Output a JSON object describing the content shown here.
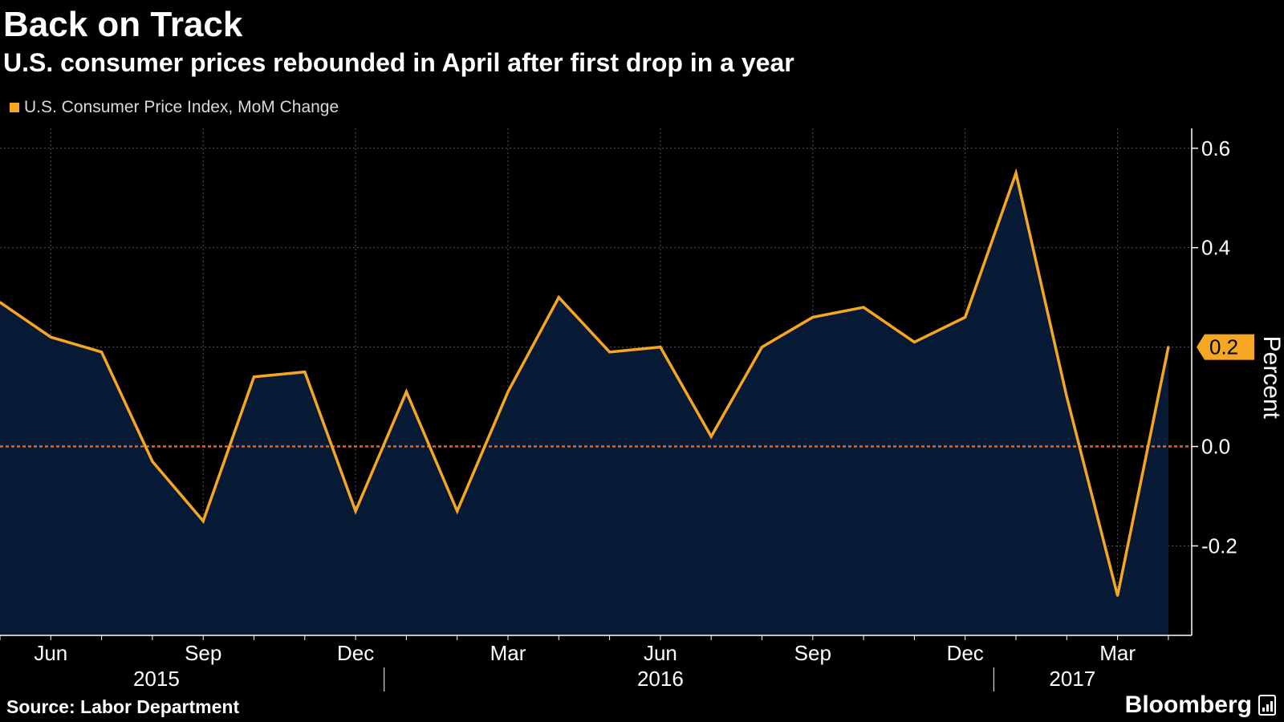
{
  "title": "Back on Track",
  "subtitle": "U.S. consumer prices rebounded in April after first drop in a year",
  "source": "Source: Labor Department",
  "brand": "Bloomberg",
  "colors": {
    "line": "#f5a623",
    "area": "#061a36",
    "zero_line": "#e8651a",
    "grid": "#555555"
  },
  "chart_data": {
    "type": "area",
    "x": [
      "2015-05",
      "2015-06",
      "2015-07",
      "2015-08",
      "2015-09",
      "2015-10",
      "2015-11",
      "2015-12",
      "2016-01",
      "2016-02",
      "2016-03",
      "2016-04",
      "2016-05",
      "2016-06",
      "2016-07",
      "2016-08",
      "2016-09",
      "2016-10",
      "2016-11",
      "2016-12",
      "2017-01",
      "2017-02",
      "2017-03",
      "2017-04"
    ],
    "series": [
      {
        "name": "U.S. Consumer Price Index, MoM Change",
        "values": [
          0.29,
          0.22,
          0.19,
          -0.03,
          -0.15,
          0.14,
          0.15,
          -0.13,
          0.11,
          -0.13,
          0.11,
          0.3,
          0.19,
          0.2,
          0.02,
          0.2,
          0.26,
          0.28,
          0.21,
          0.26,
          0.55,
          0.1,
          -0.3,
          0.2
        ]
      }
    ],
    "ylabel": "Percent",
    "ylim": [
      -0.38,
      0.64
    ],
    "yticks": [
      0.6,
      0.4,
      0.0,
      -0.2
    ],
    "yticklabels": [
      "0.6",
      "0.4",
      "0.0",
      "-0.2"
    ],
    "xtick_labels": [
      {
        "month": "2015-06",
        "label": "Jun"
      },
      {
        "month": "2015-09",
        "label": "Sep"
      },
      {
        "month": "2015-12",
        "label": "Dec"
      },
      {
        "month": "2016-03",
        "label": "Mar"
      },
      {
        "month": "2016-06",
        "label": "Jun"
      },
      {
        "month": "2016-09",
        "label": "Sep"
      },
      {
        "month": "2016-12",
        "label": "Dec"
      },
      {
        "month": "2017-03",
        "label": "Mar"
      }
    ],
    "year_labels": [
      {
        "month": "2015-08",
        "label": "2015"
      },
      {
        "month": "2016-06",
        "label": "2016"
      },
      {
        "month": "2017-02",
        "label": "2017"
      }
    ],
    "year_dividers": [
      "2016-01",
      "2017-01"
    ],
    "last_value_label": "0.2",
    "grid": true
  }
}
